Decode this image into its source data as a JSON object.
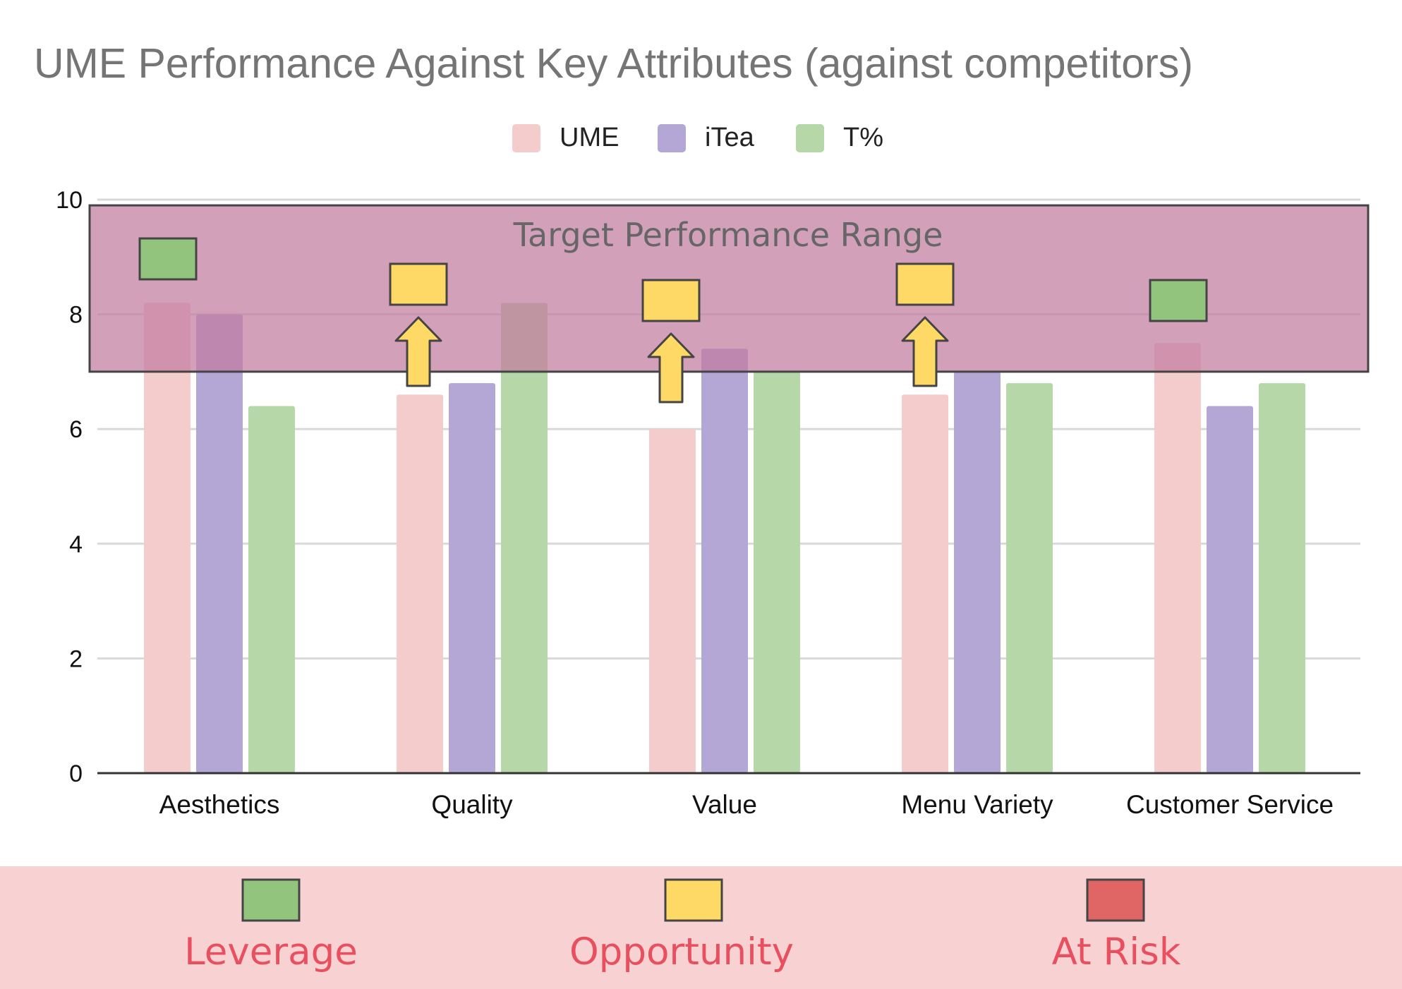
{
  "chart_data": {
    "type": "bar",
    "title": "UME Performance Against Key Attributes (against competitors)",
    "categories": [
      "Aesthetics",
      "Quality",
      "Value",
      "Menu Variety",
      "Customer Service"
    ],
    "series": [
      {
        "name": "UME",
        "color": "#f4cccc",
        "values": [
          8.2,
          6.6,
          6.0,
          6.6,
          7.5
        ]
      },
      {
        "name": "iTea",
        "color": "#b4a7d6",
        "values": [
          8.0,
          6.8,
          7.4,
          7.0,
          6.4
        ]
      },
      {
        "name": "T%",
        "color": "#b6d7a8",
        "values": [
          6.4,
          8.2,
          7.0,
          6.8,
          6.8
        ]
      }
    ],
    "ylim": [
      0,
      10
    ],
    "yticks": [
      "0",
      "2",
      "4",
      "6",
      "8",
      "10"
    ],
    "xlabel": "",
    "ylabel": "",
    "legend_position": "top",
    "grid": true,
    "target_range": {
      "label": "Target Performance Range",
      "from": 7.0,
      "to": 9.9,
      "color": "#c27ba0"
    },
    "markers": [
      {
        "category": "Aesthetics",
        "status": "Leverage",
        "arrow": false
      },
      {
        "category": "Quality",
        "status": "Opportunity",
        "arrow": true
      },
      {
        "category": "Value",
        "status": "Opportunity",
        "arrow": true
      },
      {
        "category": "Menu Variety",
        "status": "Opportunity",
        "arrow": true
      },
      {
        "category": "Customer Service",
        "status": "Leverage",
        "arrow": false
      }
    ],
    "status_key": [
      {
        "label": "Leverage",
        "color": "#93c47d"
      },
      {
        "label": "Opportunity",
        "color": "#ffd966"
      },
      {
        "label": "At Risk",
        "color": "#e06666"
      }
    ]
  },
  "colors": {
    "key_band": "#f8d2d2",
    "key_text": "#e8505f",
    "gridline": "#d9d9d9",
    "baseline": "#333333"
  }
}
